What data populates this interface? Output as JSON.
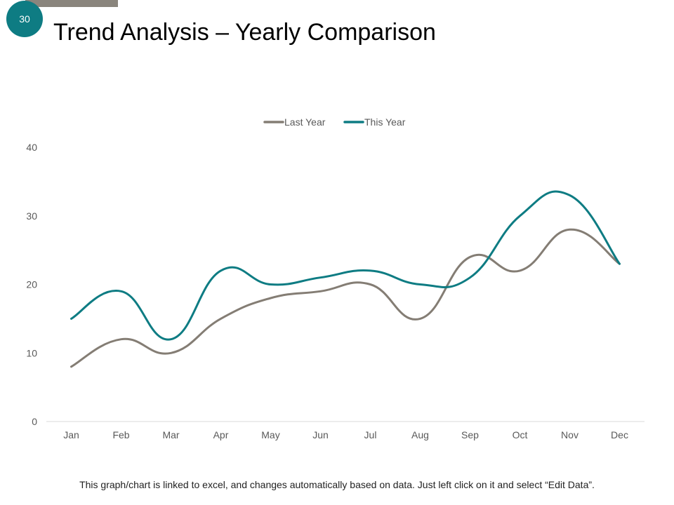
{
  "slide": {
    "number": "30",
    "title": "Trend Analysis – Yearly Comparison",
    "footnote": "This graph/chart is linked to excel, and changes automatically based on data. Just left click on it and select “Edit Data”."
  },
  "colors": {
    "accent": "#0e7c83",
    "secondary": "#847d74",
    "bar": "#8a857d"
  },
  "chart_data": {
    "type": "line",
    "title": "",
    "xlabel": "",
    "ylabel": "",
    "categories": [
      "Jan",
      "Feb",
      "Mar",
      "Apr",
      "May",
      "Jun",
      "Jul",
      "Aug",
      "Sep",
      "Oct",
      "Nov",
      "Dec"
    ],
    "series": [
      {
        "name": "Last Year",
        "color": "#847d74",
        "values": [
          8,
          12,
          10,
          15,
          18,
          19,
          20,
          15,
          24,
          22,
          28,
          23
        ]
      },
      {
        "name": "This Year",
        "color": "#0e7c83",
        "values": [
          15,
          19,
          12,
          22,
          20,
          21,
          22,
          20,
          21,
          30,
          33,
          23
        ]
      }
    ],
    "ylim": [
      0,
      40
    ],
    "yticks": [
      0,
      10,
      20,
      30,
      40
    ],
    "grid": false,
    "legend": "top-center",
    "smooth": true
  }
}
